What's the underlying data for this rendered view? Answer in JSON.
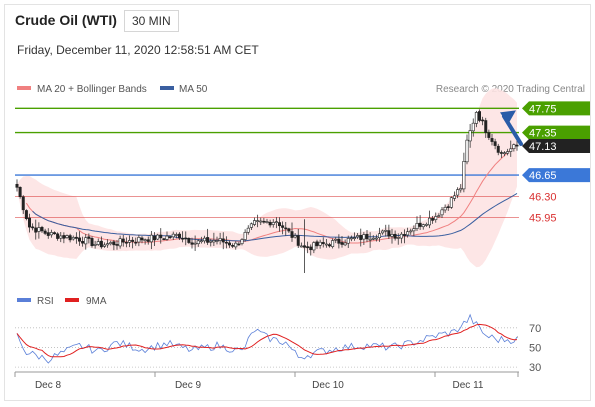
{
  "header": {
    "title": "Crude Oil (WTI)",
    "timeframe": "30 MIN",
    "datetime": "Friday, December 11, 2020 12:58:51 AM CET"
  },
  "colors": {
    "ma20_bollinger": "#f08080",
    "ma50": "#3a5fa0",
    "resistance": "#4aa000",
    "support": "#3b78d8",
    "level_red": "#d93030",
    "current": "#222222",
    "band_fill": "#fde3e3",
    "rsi": "#5a7fd8",
    "rsi_ma": "#e02020",
    "arrow": "#2a5ca8"
  },
  "chart_data": {
    "type": "candlestick",
    "legend": [
      {
        "name": "MA 20 + Bollinger Bands",
        "color": "#f08080"
      },
      {
        "name": "MA 50",
        "color": "#3a5fa0"
      }
    ],
    "credit": "Research © 2020 Trading Central",
    "ylim": [
      45.12,
      47.92
    ],
    "x_ticks": [
      "Dec 8",
      "Dec 9",
      "Dec 10",
      "Dec 11"
    ],
    "levels": [
      {
        "value": 47.75,
        "label": "47.75",
        "kind": "resistance",
        "style": "solid"
      },
      {
        "value": 47.35,
        "label": "47.35",
        "kind": "resistance",
        "style": "solid"
      },
      {
        "value": 47.13,
        "label": "47.13",
        "kind": "current",
        "style": "dotted"
      },
      {
        "value": 46.65,
        "label": "46.65",
        "kind": "support",
        "style": "solid"
      },
      {
        "value": 46.3,
        "label": "46.30",
        "kind": "red",
        "style": "solid"
      },
      {
        "value": 45.95,
        "label": "45.95",
        "kind": "red",
        "style": "solid"
      }
    ],
    "anchors": [
      {
        "i": 0,
        "v": 46.45
      },
      {
        "i": 4,
        "v": 45.8
      },
      {
        "i": 10,
        "v": 45.68
      },
      {
        "i": 20,
        "v": 45.6
      },
      {
        "i": 26,
        "v": 45.5
      },
      {
        "i": 30,
        "v": 45.52
      },
      {
        "i": 40,
        "v": 45.6
      },
      {
        "i": 46,
        "v": 45.62
      },
      {
        "i": 52,
        "v": 45.66
      },
      {
        "i": 57,
        "v": 45.54
      },
      {
        "i": 64,
        "v": 45.58
      },
      {
        "i": 70,
        "v": 45.5
      },
      {
        "i": 76,
        "v": 45.85
      },
      {
        "i": 83,
        "v": 45.9
      },
      {
        "i": 89,
        "v": 45.6
      },
      {
        "i": 92,
        "v": 45.45
      },
      {
        "i": 97,
        "v": 45.5
      },
      {
        "i": 110,
        "v": 45.62
      },
      {
        "i": 118,
        "v": 45.7
      },
      {
        "i": 122,
        "v": 45.65
      },
      {
        "i": 128,
        "v": 45.82
      },
      {
        "i": 134,
        "v": 45.98
      },
      {
        "i": 138,
        "v": 46.18
      },
      {
        "i": 142,
        "v": 46.45
      },
      {
        "i": 144,
        "v": 47.2
      },
      {
        "i": 147,
        "v": 47.7
      },
      {
        "i": 150,
        "v": 47.4
      },
      {
        "i": 155,
        "v": 47.0
      },
      {
        "i": 160,
        "v": 47.13
      }
    ],
    "rsi": {
      "series": [
        {
          "name": "RSI",
          "color": "#5a7fd8"
        },
        {
          "name": "9MA",
          "color": "#e02020"
        }
      ],
      "levels": [
        70,
        50,
        30
      ],
      "ylim": [
        25,
        80
      ],
      "anchors": [
        {
          "i": 0,
          "v": 62
        },
        {
          "i": 3,
          "v": 45
        },
        {
          "i": 10,
          "v": 38
        },
        {
          "i": 20,
          "v": 52
        },
        {
          "i": 26,
          "v": 46
        },
        {
          "i": 32,
          "v": 55
        },
        {
          "i": 40,
          "v": 48
        },
        {
          "i": 48,
          "v": 54
        },
        {
          "i": 56,
          "v": 47
        },
        {
          "i": 64,
          "v": 52
        },
        {
          "i": 72,
          "v": 46
        },
        {
          "i": 76,
          "v": 68
        },
        {
          "i": 80,
          "v": 60
        },
        {
          "i": 86,
          "v": 55
        },
        {
          "i": 90,
          "v": 40
        },
        {
          "i": 96,
          "v": 45
        },
        {
          "i": 104,
          "v": 50
        },
        {
          "i": 112,
          "v": 52
        },
        {
          "i": 120,
          "v": 50
        },
        {
          "i": 128,
          "v": 56
        },
        {
          "i": 134,
          "v": 62
        },
        {
          "i": 140,
          "v": 66
        },
        {
          "i": 145,
          "v": 80
        },
        {
          "i": 150,
          "v": 62
        },
        {
          "i": 154,
          "v": 58
        },
        {
          "i": 160,
          "v": 58
        }
      ]
    }
  }
}
